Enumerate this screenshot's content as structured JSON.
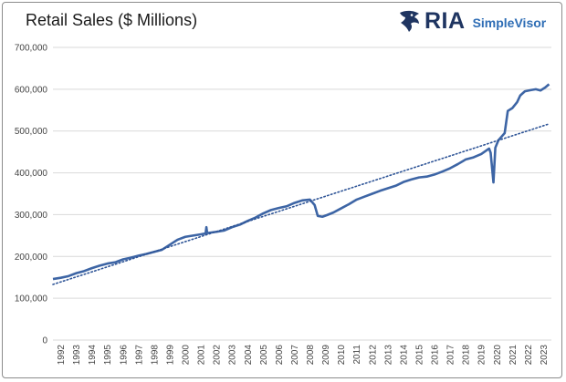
{
  "header": {
    "title": "Retail Sales ($ Millions)",
    "logo_primary": "RIA",
    "logo_secondary": "SimpleVisor",
    "logo_icon": "eagle-head-icon"
  },
  "colors": {
    "series": "#3d65a5",
    "trend": "#2f5597",
    "grid": "#d9d9d9",
    "brand_dark": "#1f3561",
    "brand_light": "#2e6db5"
  },
  "chart_data": {
    "type": "line",
    "title": "Retail Sales ($ Millions)",
    "xlabel": "",
    "ylabel": "",
    "ylim": [
      0,
      700000
    ],
    "xlim": [
      1992,
      2024
    ],
    "grid": true,
    "y_ticks": [
      0,
      100000,
      200000,
      300000,
      400000,
      500000,
      600000,
      700000
    ],
    "y_tick_labels": [
      "0",
      "100,000",
      "200,000",
      "300,000",
      "400,000",
      "500,000",
      "600,000",
      "700,000"
    ],
    "x_ticks": [
      "1992",
      "1993",
      "1994",
      "1995",
      "1996",
      "1997",
      "1998",
      "1999",
      "2000",
      "2001",
      "2002",
      "2003",
      "2004",
      "2005",
      "2006",
      "2007",
      "2008",
      "2009",
      "2010",
      "2011",
      "2012",
      "2013",
      "2014",
      "2015",
      "2016",
      "2017",
      "2018",
      "2019",
      "2020",
      "2021",
      "2022",
      "2023"
    ],
    "series": [
      {
        "name": "",
        "style": "solid",
        "points": [
          [
            1992.0,
            146000
          ],
          [
            1992.5,
            149000
          ],
          [
            1993.0,
            153000
          ],
          [
            1993.5,
            160000
          ],
          [
            1994.0,
            165000
          ],
          [
            1994.5,
            172000
          ],
          [
            1995.0,
            178000
          ],
          [
            1995.5,
            183000
          ],
          [
            1996.0,
            186000
          ],
          [
            1996.5,
            193000
          ],
          [
            1997.0,
            197000
          ],
          [
            1997.5,
            202000
          ],
          [
            1998.0,
            206000
          ],
          [
            1998.5,
            211000
          ],
          [
            1999.0,
            216000
          ],
          [
            1999.5,
            228000
          ],
          [
            2000.0,
            240000
          ],
          [
            2000.5,
            247000
          ],
          [
            2001.0,
            250000
          ],
          [
            2001.5,
            253000
          ],
          [
            2001.8,
            255000
          ],
          [
            2001.85,
            270000
          ],
          [
            2001.9,
            256000
          ],
          [
            2002.5,
            259000
          ],
          [
            2003.0,
            262000
          ],
          [
            2003.5,
            270000
          ],
          [
            2004.0,
            276000
          ],
          [
            2004.5,
            285000
          ],
          [
            2005.0,
            293000
          ],
          [
            2005.5,
            303000
          ],
          [
            2006.0,
            311000
          ],
          [
            2006.5,
            316000
          ],
          [
            2007.0,
            320000
          ],
          [
            2007.5,
            328000
          ],
          [
            2008.0,
            334000
          ],
          [
            2008.5,
            336000
          ],
          [
            2008.8,
            323000
          ],
          [
            2009.0,
            297000
          ],
          [
            2009.3,
            295000
          ],
          [
            2009.6,
            299000
          ],
          [
            2010.0,
            305000
          ],
          [
            2010.5,
            315000
          ],
          [
            2011.0,
            325000
          ],
          [
            2011.5,
            336000
          ],
          [
            2012.0,
            343000
          ],
          [
            2012.5,
            350000
          ],
          [
            2013.0,
            357000
          ],
          [
            2013.5,
            363000
          ],
          [
            2014.0,
            369000
          ],
          [
            2014.5,
            378000
          ],
          [
            2015.0,
            384000
          ],
          [
            2015.5,
            389000
          ],
          [
            2016.0,
            391000
          ],
          [
            2016.5,
            396000
          ],
          [
            2017.0,
            403000
          ],
          [
            2017.5,
            411000
          ],
          [
            2018.0,
            421000
          ],
          [
            2018.5,
            432000
          ],
          [
            2019.0,
            437000
          ],
          [
            2019.5,
            445000
          ],
          [
            2020.0,
            458000
          ],
          [
            2020.1,
            448000
          ],
          [
            2020.28,
            377000
          ],
          [
            2020.4,
            460000
          ],
          [
            2020.6,
            478000
          ],
          [
            2021.0,
            495000
          ],
          [
            2021.2,
            548000
          ],
          [
            2021.5,
            555000
          ],
          [
            2021.8,
            569000
          ],
          [
            2022.0,
            585000
          ],
          [
            2022.3,
            595000
          ],
          [
            2022.7,
            598000
          ],
          [
            2023.0,
            600000
          ],
          [
            2023.3,
            597000
          ],
          [
            2023.6,
            604000
          ],
          [
            2023.85,
            612000
          ]
        ]
      },
      {
        "name": "",
        "style": "dotted",
        "points": [
          [
            1992.0,
            133000
          ],
          [
            2023.85,
            517000
          ]
        ]
      }
    ]
  }
}
